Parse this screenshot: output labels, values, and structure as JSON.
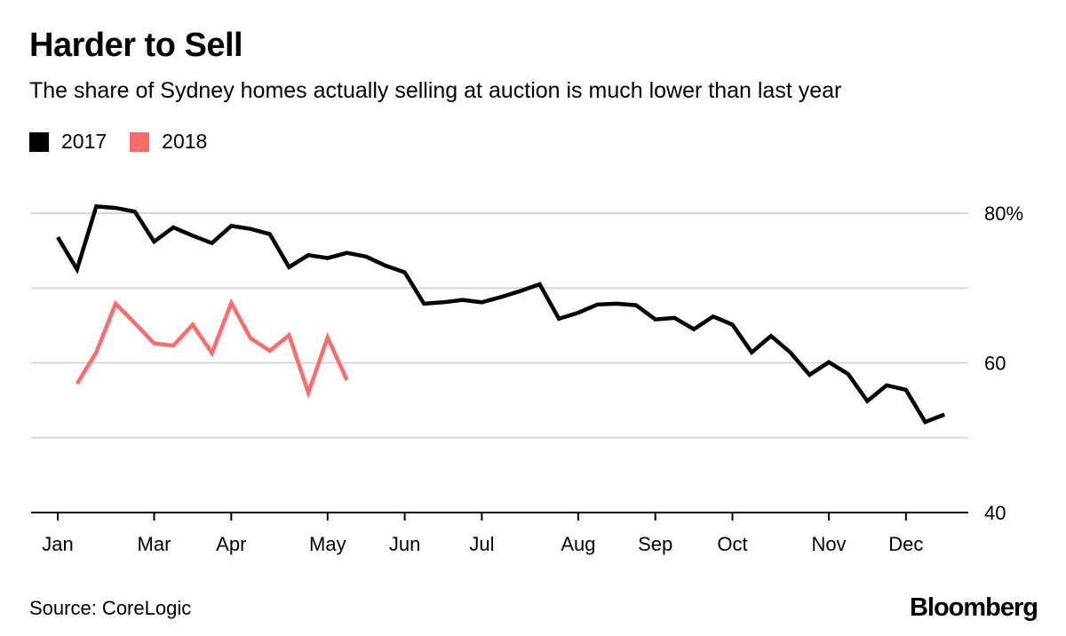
{
  "chart_data": {
    "type": "line",
    "title": "Harder to Sell",
    "subtitle": "The share of Sydney homes actually selling at auction is much lower than last year",
    "source": "Source: CoreLogic",
    "brand": "Bloomberg",
    "ylim": [
      40,
      80
    ],
    "y_ticks": [
      {
        "value": 80,
        "label": "80%"
      },
      {
        "value": 70,
        "label": ""
      },
      {
        "value": 60,
        "label": "60"
      },
      {
        "value": 50,
        "label": ""
      },
      {
        "value": 40,
        "label": "40"
      }
    ],
    "y_axis_position": "right",
    "grid": true,
    "x_unit": "weekly observation",
    "x_ticks": [
      {
        "label": "Jan",
        "index": 0
      },
      {
        "label": "Mar",
        "index": 5
      },
      {
        "label": "Apr",
        "index": 9
      },
      {
        "label": "May",
        "index": 14
      },
      {
        "label": "Jun",
        "index": 18
      },
      {
        "label": "Jul",
        "index": 22
      },
      {
        "label": "Aug",
        "index": 27
      },
      {
        "label": "Sep",
        "index": 31
      },
      {
        "label": "Oct",
        "index": 35
      },
      {
        "label": "Nov",
        "index": 40
      },
      {
        "label": "Dec",
        "index": 44
      }
    ],
    "legend_position": "top-left",
    "series": [
      {
        "name": "2017",
        "color": "#000000",
        "start_index": 0,
        "values": [
          76.8,
          72.5,
          80.9,
          80.7,
          80.2,
          76.2,
          78.1,
          77.0,
          76.0,
          78.3,
          77.9,
          77.2,
          72.8,
          74.4,
          74.0,
          74.7,
          74.2,
          73.0,
          72.1,
          67.9,
          68.1,
          68.4,
          68.1,
          68.8,
          69.6,
          70.5,
          65.9,
          66.7,
          67.8,
          67.9,
          67.7,
          65.8,
          66.0,
          64.5,
          66.2,
          65.1,
          61.4,
          63.6,
          61.4,
          58.4,
          60.1,
          58.5,
          54.9,
          57.0,
          56.4,
          52.1,
          53.1
        ]
      },
      {
        "name": "2018",
        "color": "#ff6b6b",
        "start_index": 1,
        "values": [
          57.2,
          61.4,
          67.9,
          65.3,
          62.6,
          62.3,
          65.1,
          61.3,
          68.0,
          63.3,
          61.6,
          63.7,
          56.0,
          63.4,
          57.7
        ]
      }
    ]
  }
}
